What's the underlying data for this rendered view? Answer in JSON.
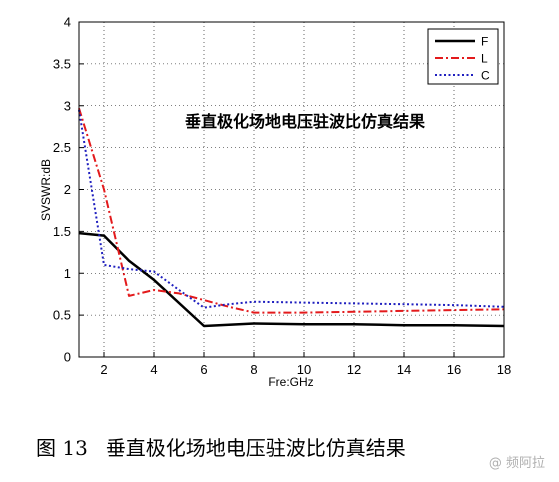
{
  "caption": {
    "figure_number": "图 13",
    "text": "垂直极化场地电压驻波比仿真结果"
  },
  "watermark": "@ 频阿拉",
  "chart_data": {
    "type": "line",
    "title": "垂直极化场地电压驻波比仿真结果",
    "xlabel": "Fre:GHz",
    "ylabel": "SVSWR:dB",
    "xlim": [
      1,
      18
    ],
    "ylim": [
      0,
      4
    ],
    "x_ticks": [
      2,
      4,
      6,
      8,
      10,
      12,
      14,
      16,
      18
    ],
    "y_ticks": [
      0,
      0.5,
      1,
      1.5,
      2,
      2.5,
      3,
      3.5,
      4
    ],
    "grid": true,
    "legend_position": "top-right",
    "series": [
      {
        "name": "F",
        "color": "#000000",
        "style": "solid",
        "x": [
          1,
          2,
          3,
          4,
          6,
          8,
          10,
          12,
          14,
          16,
          18
        ],
        "y": [
          1.48,
          1.45,
          1.15,
          0.92,
          0.37,
          0.4,
          0.39,
          0.39,
          0.38,
          0.38,
          0.37
        ]
      },
      {
        "name": "L",
        "color": "#e31a1c",
        "style": "dashdot",
        "x": [
          1,
          2,
          3,
          4,
          5,
          6,
          7,
          8,
          10,
          12,
          14,
          16,
          18
        ],
        "y": [
          2.97,
          2.0,
          0.73,
          0.8,
          0.76,
          0.68,
          0.6,
          0.53,
          0.53,
          0.54,
          0.55,
          0.56,
          0.57
        ]
      },
      {
        "name": "C",
        "color": "#1f1fbf",
        "style": "dotted",
        "x": [
          1,
          2,
          3,
          4,
          5,
          6,
          7,
          8,
          10,
          12,
          14,
          16,
          18
        ],
        "y": [
          2.95,
          1.1,
          1.05,
          1.02,
          0.8,
          0.59,
          0.63,
          0.66,
          0.65,
          0.64,
          0.63,
          0.62,
          0.6
        ]
      }
    ]
  }
}
